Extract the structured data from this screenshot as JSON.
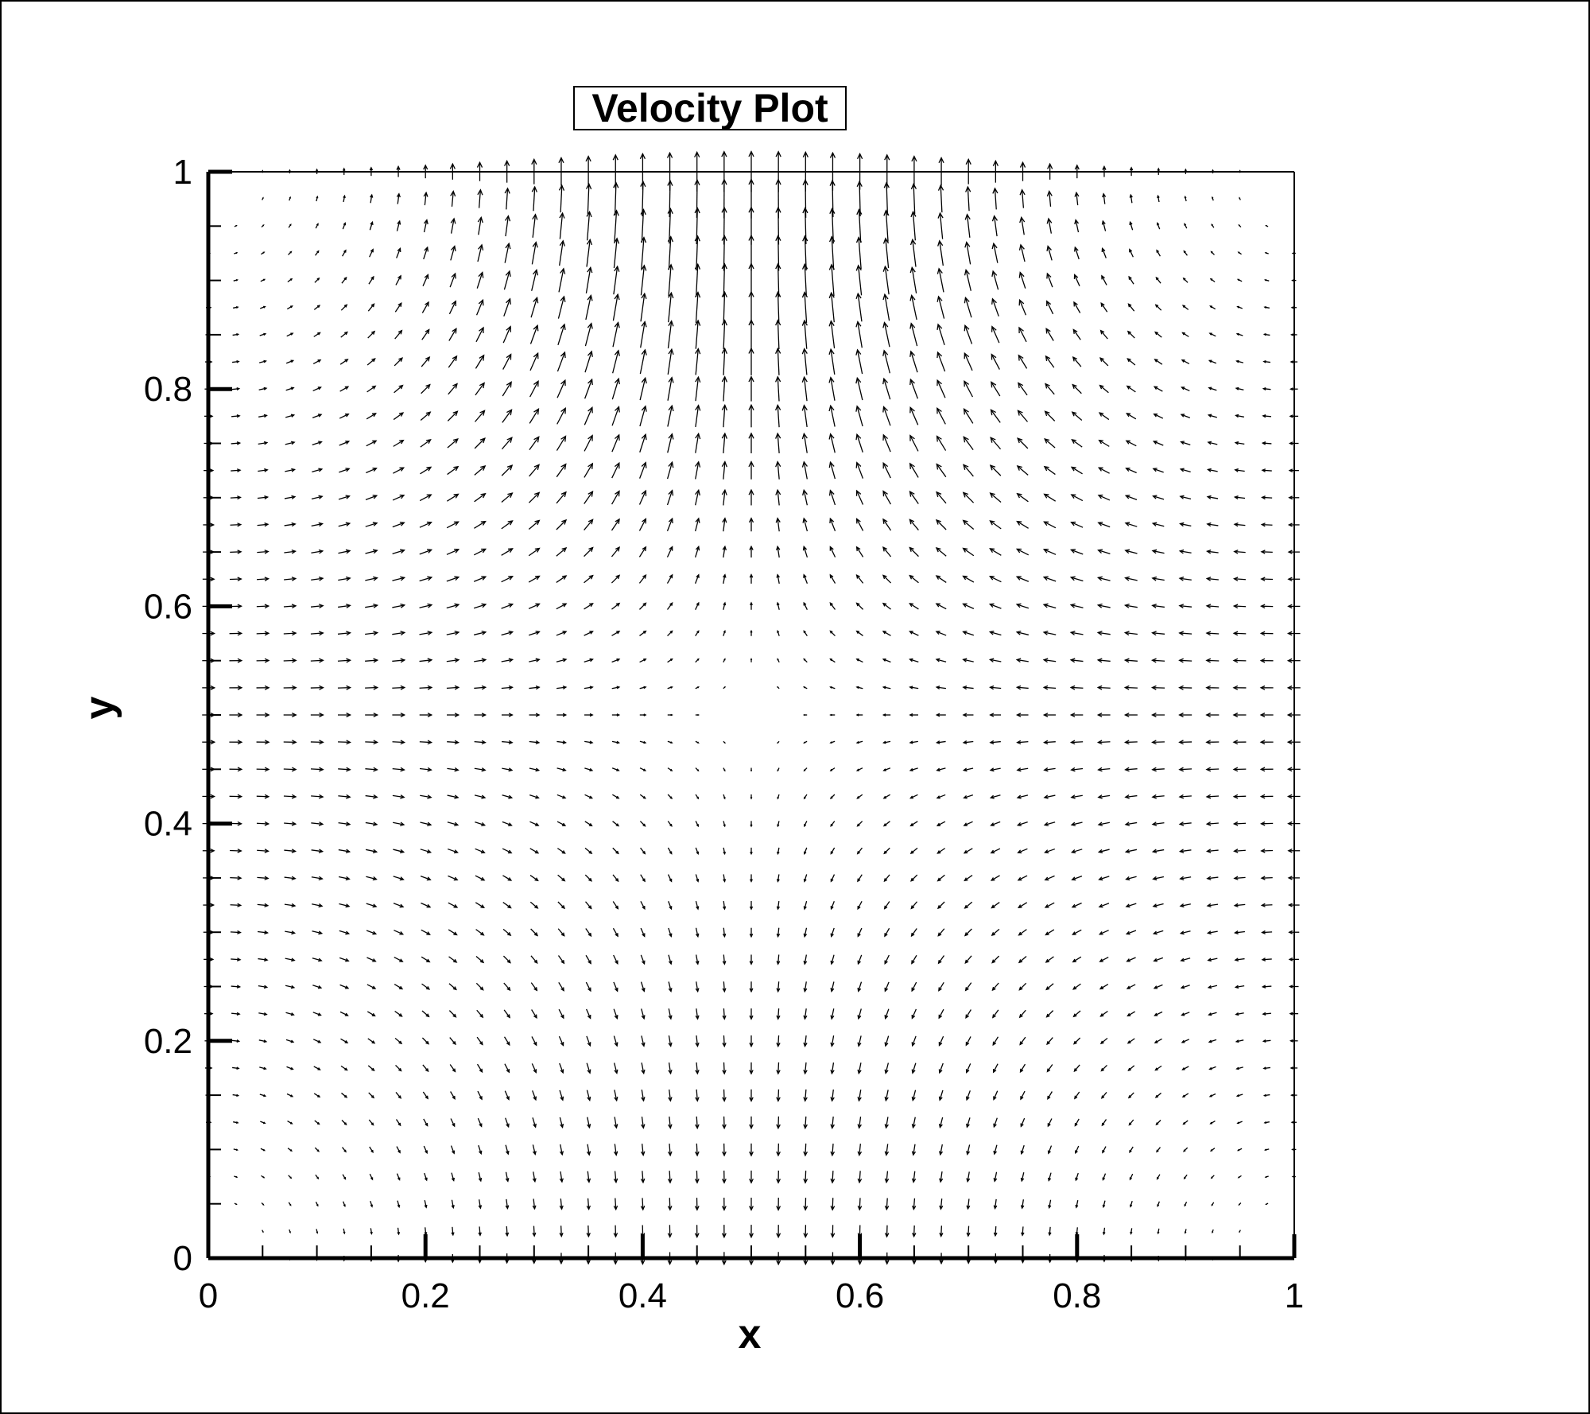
{
  "chart_data": {
    "type": "vector-field",
    "title": "Velocity Plot",
    "xlabel": "x",
    "ylabel": "y",
    "xlim": [
      0,
      1
    ],
    "ylim": [
      0,
      1
    ],
    "x_ticks": [
      "0",
      "0.2",
      "0.4",
      "0.6",
      "0.8",
      "1"
    ],
    "y_ticks": [
      "0",
      "0.2",
      "0.4",
      "0.6",
      "0.8",
      "1"
    ],
    "x_tick_values": [
      0,
      0.2,
      0.4,
      0.6,
      0.8,
      1
    ],
    "y_tick_values": [
      0,
      0.2,
      0.4,
      0.6,
      0.8,
      1
    ],
    "minor_tick_step": 0.05,
    "grid": false,
    "legend": "none",
    "field": {
      "description_free_params": true,
      "u": "cos(pi*x) * sin(pi*y)",
      "v": "-sin(pi*x) * cos(pi*y)",
      "scale_form": "y^2 * (1 - cos(2*pi*x)) / 2 + 0.05",
      "grid_nx": 40,
      "grid_ny": 40
    },
    "colors": {
      "ink": "#000000",
      "background": "#ffffff"
    }
  }
}
